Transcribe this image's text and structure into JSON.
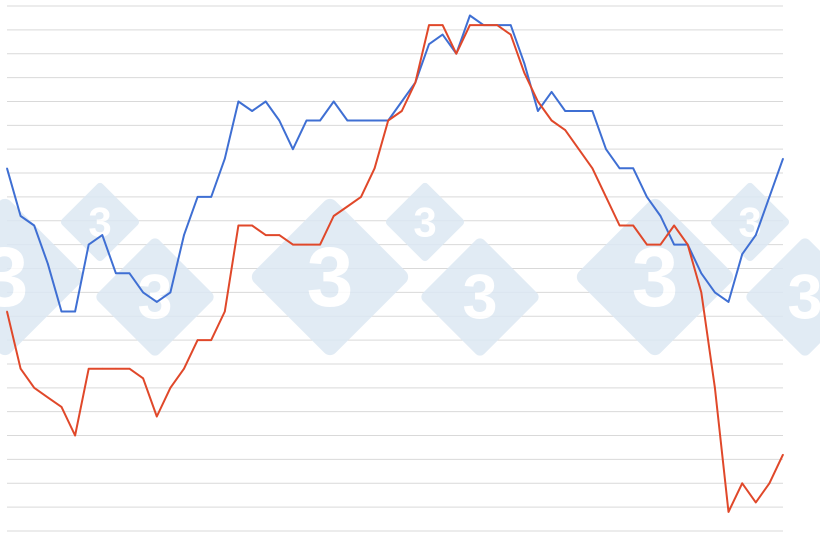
{
  "chart_data": {
    "type": "line",
    "title": "",
    "xlabel": "",
    "ylabel": "",
    "ylim": [
      0,
      22
    ],
    "grid": true,
    "legend": "none",
    "watermark_text": "3",
    "colors": {
      "grid": "#d9d9d9",
      "watermark": "#dce8f3",
      "series_1": "#3f6fd3",
      "series_2": "#e0482a"
    },
    "x": [
      0,
      1,
      2,
      3,
      4,
      5,
      6,
      7,
      8,
      9,
      10,
      11,
      12,
      13,
      14,
      15,
      16,
      17,
      18,
      19,
      20,
      21,
      22,
      23,
      24,
      25,
      26,
      27,
      28,
      29,
      30,
      31,
      32,
      33,
      34,
      35,
      36,
      37,
      38,
      39,
      40,
      41,
      42,
      43,
      44,
      45,
      46,
      47,
      48,
      49,
      50,
      51,
      52,
      53,
      54,
      55,
      56,
      57
    ],
    "series": [
      {
        "color": "#3f6fd3",
        "values": [
          15.2,
          13.2,
          12.8,
          11.2,
          9.2,
          9.2,
          12.0,
          12.4,
          10.8,
          10.8,
          10.0,
          9.6,
          10.0,
          12.4,
          14.0,
          14.0,
          15.6,
          18.0,
          17.6,
          18.0,
          17.2,
          16.0,
          17.2,
          17.2,
          18.0,
          17.2,
          17.2,
          17.2,
          17.2,
          18.0,
          18.8,
          20.4,
          20.8,
          20.0,
          21.6,
          21.2,
          21.2,
          21.2,
          19.6,
          17.6,
          18.4,
          17.6,
          17.6,
          17.6,
          16.0,
          15.2,
          15.2,
          14.0,
          13.2,
          12.0,
          12.0,
          10.8,
          10.0,
          9.6,
          11.6,
          12.4,
          14.0,
          15.6
        ]
      },
      {
        "color": "#e0482a",
        "values": [
          9.2,
          6.8,
          6.0,
          5.6,
          5.2,
          4.0,
          6.8,
          6.8,
          6.8,
          6.8,
          6.4,
          4.8,
          6.0,
          6.8,
          8.0,
          8.0,
          9.2,
          12.8,
          12.8,
          12.4,
          12.4,
          12.0,
          12.0,
          12.0,
          13.2,
          13.6,
          14.0,
          15.2,
          17.2,
          17.6,
          18.8,
          21.2,
          21.2,
          20.0,
          21.2,
          21.2,
          21.2,
          20.8,
          19.2,
          18.0,
          17.2,
          16.8,
          16.0,
          15.2,
          14.0,
          12.8,
          12.8,
          12.0,
          12.0,
          12.8,
          12.0,
          10.0,
          6.0,
          0.8,
          2.0,
          1.2,
          2.0,
          3.2
        ]
      }
    ]
  }
}
